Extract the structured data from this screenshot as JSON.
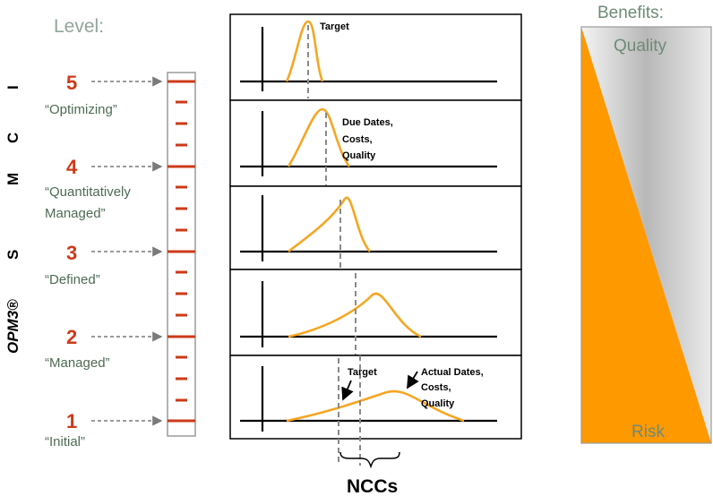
{
  "level_heading": "Level:",
  "vertical_label": "OPM3® S M C I",
  "vertical_label_parts": {
    "opm3": "OPM3®",
    "s": "S",
    "m": "M",
    "c": "C",
    "i": "I"
  },
  "levels": [
    {
      "number": "5",
      "name": "“Optimizing”"
    },
    {
      "number": "4",
      "name_line1": "“Quantitatively",
      "name_line2": "Managed”"
    },
    {
      "number": "3",
      "name": "“Defined”"
    },
    {
      "number": "2",
      "name": "“Managed”"
    },
    {
      "number": "1",
      "name": "“Initial”"
    }
  ],
  "annotations": {
    "target_top": "Target",
    "due_dates": [
      "Due Dates,",
      "Costs,",
      "Quality"
    ],
    "target_bottom": "Target",
    "actual_dates": [
      "Actual Dates,",
      "Costs,",
      "Quality"
    ],
    "nccs": "NCCs"
  },
  "benefits": {
    "title": "Benefits:",
    "quality": "Quality",
    "risk": "Risk"
  },
  "colors": {
    "accent_red": "#cc3a1a",
    "curve_orange": "#f5a623",
    "risk_orange": "#ff9900",
    "label_green": "#4e6b54"
  }
}
